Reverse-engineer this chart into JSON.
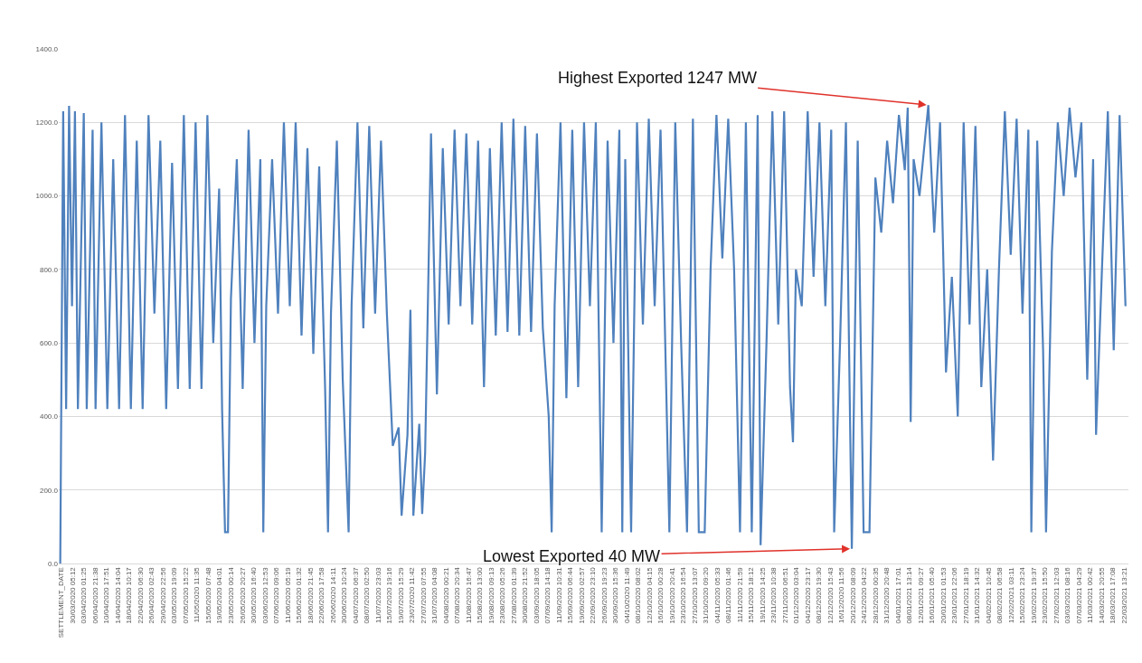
{
  "chart_data": {
    "type": "line",
    "color": "#4f81bd",
    "grid": "y",
    "x": [
      "2020-03-26",
      "2020-03-27",
      "2020-03-28",
      "2020-03-29",
      "2020-03-30",
      "2020-03-31",
      "2020-04-01",
      "2020-04-03",
      "2020-04-04",
      "2020-04-06",
      "2020-04-07",
      "2020-04-09",
      "2020-04-11",
      "2020-04-13",
      "2020-04-15",
      "2020-04-17",
      "2020-04-19",
      "2020-04-21",
      "2020-04-23",
      "2020-04-25",
      "2020-04-27",
      "2020-04-29",
      "2020-05-01",
      "2020-05-03",
      "2020-05-05",
      "2020-05-07",
      "2020-05-09",
      "2020-05-11",
      "2020-05-13",
      "2020-05-15",
      "2020-05-17",
      "2020-05-19",
      "2020-05-20",
      "2020-05-21",
      "2020-05-22",
      "2020-05-23",
      "2020-05-25",
      "2020-05-27",
      "2020-05-29",
      "2020-05-31",
      "2020-06-02",
      "2020-06-03",
      "2020-06-04",
      "2020-06-06",
      "2020-06-08",
      "2020-06-10",
      "2020-06-12",
      "2020-06-14",
      "2020-06-16",
      "2020-06-18",
      "2020-06-20",
      "2020-06-22",
      "2020-06-24",
      "2020-06-25",
      "2020-06-26",
      "2020-06-28",
      "2020-06-30",
      "2020-07-02",
      "2020-07-03",
      "2020-07-05",
      "2020-07-07",
      "2020-07-09",
      "2020-07-11",
      "2020-07-13",
      "2020-07-15",
      "2020-07-17",
      "2020-07-19",
      "2020-07-20",
      "2020-07-22",
      "2020-07-23",
      "2020-07-24",
      "2020-07-26",
      "2020-07-27",
      "2020-07-28",
      "2020-07-30",
      "2020-08-01",
      "2020-08-03",
      "2020-08-05",
      "2020-08-07",
      "2020-08-09",
      "2020-08-11",
      "2020-08-13",
      "2020-08-15",
      "2020-08-17",
      "2020-08-19",
      "2020-08-21",
      "2020-08-23",
      "2020-08-25",
      "2020-08-27",
      "2020-08-29",
      "2020-08-31",
      "2020-09-02",
      "2020-09-04",
      "2020-09-06",
      "2020-09-08",
      "2020-09-09",
      "2020-09-10",
      "2020-09-12",
      "2020-09-14",
      "2020-09-16",
      "2020-09-18",
      "2020-09-20",
      "2020-09-22",
      "2020-09-24",
      "2020-09-26",
      "2020-09-28",
      "2020-09-30",
      "2020-10-02",
      "2020-10-03",
      "2020-10-04",
      "2020-10-06",
      "2020-10-08",
      "2020-10-10",
      "2020-10-12",
      "2020-10-14",
      "2020-10-16",
      "2020-10-19",
      "2020-10-21",
      "2020-10-23",
      "2020-10-25",
      "2020-10-27",
      "2020-10-29",
      "2020-10-31",
      "2020-11-02",
      "2020-11-04",
      "2020-11-06",
      "2020-11-08",
      "2020-11-10",
      "2020-11-12",
      "2020-11-14",
      "2020-11-16",
      "2020-11-18",
      "2020-11-19",
      "2020-11-21",
      "2020-11-23",
      "2020-11-25",
      "2020-11-27",
      "2020-11-29",
      "2020-11-30",
      "2020-12-01",
      "2020-12-03",
      "2020-12-05",
      "2020-12-07",
      "2020-12-09",
      "2020-12-11",
      "2020-12-13",
      "2020-12-14",
      "2020-12-16",
      "2020-12-18",
      "2020-12-20",
      "2020-12-22",
      "2020-12-24",
      "2020-12-26",
      "2020-12-28",
      "2020-12-30",
      "2021-01-01",
      "2021-01-03",
      "2021-01-05",
      "2021-01-07",
      "2021-01-08",
      "2021-01-09",
      "2021-01-10",
      "2021-01-12",
      "2021-01-15",
      "2021-01-17",
      "2021-01-19",
      "2021-01-21",
      "2021-01-23",
      "2021-01-25",
      "2021-01-27",
      "2021-01-29",
      "2021-01-31",
      "2021-02-02",
      "2021-02-04",
      "2021-02-06",
      "2021-02-08",
      "2021-02-10",
      "2021-02-12",
      "2021-02-14",
      "2021-02-16",
      "2021-02-18",
      "2021-02-19",
      "2021-02-21",
      "2021-02-23",
      "2021-02-24",
      "2021-02-26",
      "2021-02-28",
      "2021-03-02",
      "2021-03-04",
      "2021-03-06",
      "2021-03-08",
      "2021-03-10",
      "2021-03-12",
      "2021-03-13",
      "2021-03-15",
      "2021-03-17",
      "2021-03-19",
      "2021-03-21",
      "2021-03-23"
    ],
    "values": [
      0,
      1230,
      420,
      1245,
      700,
      1230,
      420,
      1225,
      420,
      1180,
      420,
      1200,
      420,
      1100,
      420,
      1220,
      420,
      1150,
      420,
      1220,
      680,
      1150,
      420,
      1090,
      475,
      1220,
      475,
      1200,
      475,
      1220,
      600,
      1020,
      420,
      85,
      85,
      720,
      1100,
      475,
      1180,
      600,
      1100,
      85,
      700,
      1100,
      680,
      1200,
      700,
      1200,
      620,
      1130,
      570,
      1080,
      480,
      85,
      680,
      1150,
      500,
      85,
      700,
      1200,
      640,
      1190,
      680,
      1150,
      680,
      320,
      370,
      130,
      350,
      690,
      130,
      380,
      135,
      300,
      1170,
      460,
      1130,
      650,
      1180,
      700,
      1170,
      650,
      1150,
      480,
      1130,
      620,
      1200,
      630,
      1210,
      620,
      1190,
      630,
      1170,
      640,
      400,
      85,
      700,
      1200,
      450,
      1180,
      480,
      1200,
      700,
      1200,
      85,
      1150,
      600,
      1180,
      85,
      1100,
      85,
      1200,
      650,
      1210,
      700,
      1180,
      85,
      1200,
      600,
      85,
      1210,
      85,
      85,
      800,
      1220,
      830,
      1210,
      800,
      85,
      1200,
      85,
      1220,
      50,
      600,
      1230,
      650,
      1230,
      480,
      330,
      800,
      700,
      1230,
      780,
      1200,
      700,
      1180,
      85,
      600,
      1200,
      40,
      1150,
      85,
      85,
      1050,
      900,
      1150,
      980,
      1220,
      1070,
      1240,
      385,
      1100,
      1000,
      1247,
      900,
      1200,
      520,
      780,
      400,
      1200,
      650,
      1190,
      480,
      800,
      280,
      800,
      1230,
      840,
      1210,
      680,
      1180,
      85,
      1150,
      580,
      85,
      850,
      1200,
      1000,
      1240,
      1050,
      1200,
      500,
      1100,
      350,
      800,
      1230,
      580,
      1220,
      700
    ],
    "xlim": [
      "2020-03-25T12:00",
      "2021-03-24"
    ],
    "xticks": [
      {
        "value": "2020-03-26T08:59",
        "label": "SETTLEMENT_DATE"
      },
      {
        "value": "2020-03-30T05:12",
        "label": "30/03/2020 05:12"
      },
      {
        "value": "2020-04-03T01:25",
        "label": "03/04/2020 01:25"
      },
      {
        "value": "2020-04-06T21:38",
        "label": "06/04/2020 21:38"
      },
      {
        "value": "2020-04-10T17:51",
        "label": "10/04/2020 17:51"
      },
      {
        "value": "2020-04-14T14:04",
        "label": "14/04/2020 14:04"
      },
      {
        "value": "2020-04-18T10:17",
        "label": "18/04/2020 10:17"
      },
      {
        "value": "2020-04-22T06:30",
        "label": "22/04/2020 06:30"
      },
      {
        "value": "2020-04-26T02:43",
        "label": "26/04/2020 02:43"
      },
      {
        "value": "2020-04-29T22:56",
        "label": "29/04/2020 22:56"
      },
      {
        "value": "2020-05-03T19:09",
        "label": "03/05/2020 19:09"
      },
      {
        "value": "2020-05-07T15:22",
        "label": "07/05/2020 15:22"
      },
      {
        "value": "2020-05-11T11:35",
        "label": "11/05/2020 11:35"
      },
      {
        "value": "2020-05-15T07:48",
        "label": "15/05/2020 07:48"
      },
      {
        "value": "2020-05-19T04:01",
        "label": "19/05/2020 04:01"
      },
      {
        "value": "2020-05-23T00:14",
        "label": "23/05/2020 00:14"
      },
      {
        "value": "2020-05-26T20:27",
        "label": "26/05/2020 20:27"
      },
      {
        "value": "2020-05-30T16:40",
        "label": "30/05/2020 16:40"
      },
      {
        "value": "2020-06-03T12:53",
        "label": "03/06/2020 12:53"
      },
      {
        "value": "2020-06-07T09:06",
        "label": "07/06/2020 09:06"
      },
      {
        "value": "2020-06-11T05:19",
        "label": "11/06/2020 05:19"
      },
      {
        "value": "2020-06-15T01:32",
        "label": "15/06/2020 01:32"
      },
      {
        "value": "2020-06-18T21:45",
        "label": "18/06/2020 21:45"
      },
      {
        "value": "2020-06-22T17:58",
        "label": "22/06/2020 17:58"
      },
      {
        "value": "2020-06-26T14:11",
        "label": "26/06/2020 14:11"
      },
      {
        "value": "2020-06-30T10:24",
        "label": "30/06/2020 10:24"
      },
      {
        "value": "2020-07-04T06:37",
        "label": "04/07/2020 06:37"
      },
      {
        "value": "2020-07-08T02:50",
        "label": "08/07/2020 02:50"
      },
      {
        "value": "2020-07-11T23:03",
        "label": "11/07/2020 23:03"
      },
      {
        "value": "2020-07-15T19:16",
        "label": "15/07/2020 19:16"
      },
      {
        "value": "2020-07-19T15:29",
        "label": "19/07/2020 15:29"
      },
      {
        "value": "2020-07-23T11:42",
        "label": "23/07/2020 11:42"
      },
      {
        "value": "2020-07-27T07:55",
        "label": "27/07/2020 07:55"
      },
      {
        "value": "2020-07-31T04:08",
        "label": "31/07/2020 04:08"
      },
      {
        "value": "2020-08-04T00:21",
        "label": "04/08/2020 00:21"
      },
      {
        "value": "2020-08-07T20:34",
        "label": "07/08/2020 20:34"
      },
      {
        "value": "2020-08-11T16:47",
        "label": "11/08/2020 16:47"
      },
      {
        "value": "2020-08-15T13:00",
        "label": "15/08/2020 13:00"
      },
      {
        "value": "2020-08-19T09:13",
        "label": "19/08/2020 09:13"
      },
      {
        "value": "2020-08-23T05:26",
        "label": "23/08/2020 05:26"
      },
      {
        "value": "2020-08-27T01:39",
        "label": "27/08/2020 01:39"
      },
      {
        "value": "2020-08-30T21:52",
        "label": "30/08/2020 21:52"
      },
      {
        "value": "2020-09-03T18:05",
        "label": "03/09/2020 18:05"
      },
      {
        "value": "2020-09-07T14:18",
        "label": "07/09/2020 14:18"
      },
      {
        "value": "2020-09-11T10:31",
        "label": "11/09/2020 10:31"
      },
      {
        "value": "2020-09-15T06:44",
        "label": "15/09/2020 06:44"
      },
      {
        "value": "2020-09-19T02:57",
        "label": "19/09/2020 02:57"
      },
      {
        "value": "2020-09-22T23:10",
        "label": "22/09/2020 23:10"
      },
      {
        "value": "2020-09-26T19:23",
        "label": "26/09/2020 19:23"
      },
      {
        "value": "2020-09-30T15:36",
        "label": "30/09/2020 15:36"
      },
      {
        "value": "2020-10-04T11:49",
        "label": "04/10/2020 11:49"
      },
      {
        "value": "2020-10-08T08:02",
        "label": "08/10/2020 08:02"
      },
      {
        "value": "2020-10-12T04:15",
        "label": "12/10/2020 04:15"
      },
      {
        "value": "2020-10-16T00:28",
        "label": "16/10/2020 00:28"
      },
      {
        "value": "2020-10-19T20:41",
        "label": "19/10/2020 20:41"
      },
      {
        "value": "2020-10-23T16:54",
        "label": "23/10/2020 16:54"
      },
      {
        "value": "2020-10-27T13:07",
        "label": "27/10/2020 13:07"
      },
      {
        "value": "2020-10-31T09:20",
        "label": "31/10/2020 09:20"
      },
      {
        "value": "2020-11-04T05:33",
        "label": "04/11/2020 05:33"
      },
      {
        "value": "2020-11-08T01:46",
        "label": "08/11/2020 01:46"
      },
      {
        "value": "2020-11-11T21:59",
        "label": "11/11/2020 21:59"
      },
      {
        "value": "2020-11-15T18:12",
        "label": "15/11/2020 18:12"
      },
      {
        "value": "2020-11-19T14:25",
        "label": "19/11/2020 14:25"
      },
      {
        "value": "2020-11-23T10:38",
        "label": "23/11/2020 10:38"
      },
      {
        "value": "2020-11-27T06:51",
        "label": "27/11/2020 06:51"
      },
      {
        "value": "2020-12-01T03:04",
        "label": "01/12/2020 03:04"
      },
      {
        "value": "2020-12-04T23:17",
        "label": "04/12/2020 23:17"
      },
      {
        "value": "2020-12-08T19:30",
        "label": "08/12/2020 19:30"
      },
      {
        "value": "2020-12-12T15:43",
        "label": "12/12/2020 15:43"
      },
      {
        "value": "2020-12-16T11:56",
        "label": "16/12/2020 11:56"
      },
      {
        "value": "2020-12-20T08:09",
        "label": "20/12/2020 08:09"
      },
      {
        "value": "2020-12-24T04:22",
        "label": "24/12/2020 04:22"
      },
      {
        "value": "2020-12-28T00:35",
        "label": "28/12/2020 00:35"
      },
      {
        "value": "2020-12-31T20:48",
        "label": "31/12/2020 20:48"
      },
      {
        "value": "2021-01-04T17:01",
        "label": "04/01/2021 17:01"
      },
      {
        "value": "2021-01-08T13:14",
        "label": "08/01/2021 13:14"
      },
      {
        "value": "2021-01-12T09:27",
        "label": "12/01/2021 09:27"
      },
      {
        "value": "2021-01-16T05:40",
        "label": "16/01/2021 05:40"
      },
      {
        "value": "2021-01-20T01:53",
        "label": "20/01/2021 01:53"
      },
      {
        "value": "2021-01-23T22:06",
        "label": "23/01/2021 22:06"
      },
      {
        "value": "2021-01-27T18:19",
        "label": "27/01/2021 18:19"
      },
      {
        "value": "2021-01-31T14:32",
        "label": "31/01/2021 14:32"
      },
      {
        "value": "2021-02-04T10:45",
        "label": "04/02/2021 10:45"
      },
      {
        "value": "2021-02-08T06:58",
        "label": "08/02/2021 06:58"
      },
      {
        "value": "2021-02-12T03:11",
        "label": "12/02/2021 03:11"
      },
      {
        "value": "2021-02-15T23:24",
        "label": "15/02/2021 23:24"
      },
      {
        "value": "2021-02-19T19:37",
        "label": "19/02/2021 19:37"
      },
      {
        "value": "2021-02-23T15:50",
        "label": "23/02/2021 15:50"
      },
      {
        "value": "2021-02-27T12:03",
        "label": "27/02/2021 12:03"
      },
      {
        "value": "2021-03-03T08:16",
        "label": "03/03/2021 08:16"
      },
      {
        "value": "2021-03-07T04:29",
        "label": "07/03/2021 04:29"
      },
      {
        "value": "2021-03-11T00:42",
        "label": "11/03/2021 00:42"
      },
      {
        "value": "2021-03-14T20:55",
        "label": "14/03/2021 20:55"
      },
      {
        "value": "2021-03-18T17:08",
        "label": "18/03/2021 17:08"
      },
      {
        "value": "2021-03-22T13:21",
        "label": "22/03/2021 13:21"
      }
    ],
    "ylim": [
      0,
      1400
    ],
    "yticks": [
      {
        "value": 0,
        "label": "0.0"
      },
      {
        "value": 200,
        "label": "200.0"
      },
      {
        "value": 400,
        "label": "400.0"
      },
      {
        "value": 600,
        "label": "600.0"
      },
      {
        "value": 800,
        "label": "800.0"
      },
      {
        "value": 1000,
        "label": "1000.0"
      },
      {
        "value": 1200,
        "label": "1200.0"
      },
      {
        "value": 1400,
        "label": "1400.0"
      }
    ],
    "annotations": [
      {
        "text": "Highest Exported 1247 MW",
        "x": "2021-01-15",
        "y": 1247
      },
      {
        "text": "Lowest Exported 40 MW",
        "x": "2020-12-20",
        "y": 40
      }
    ]
  }
}
